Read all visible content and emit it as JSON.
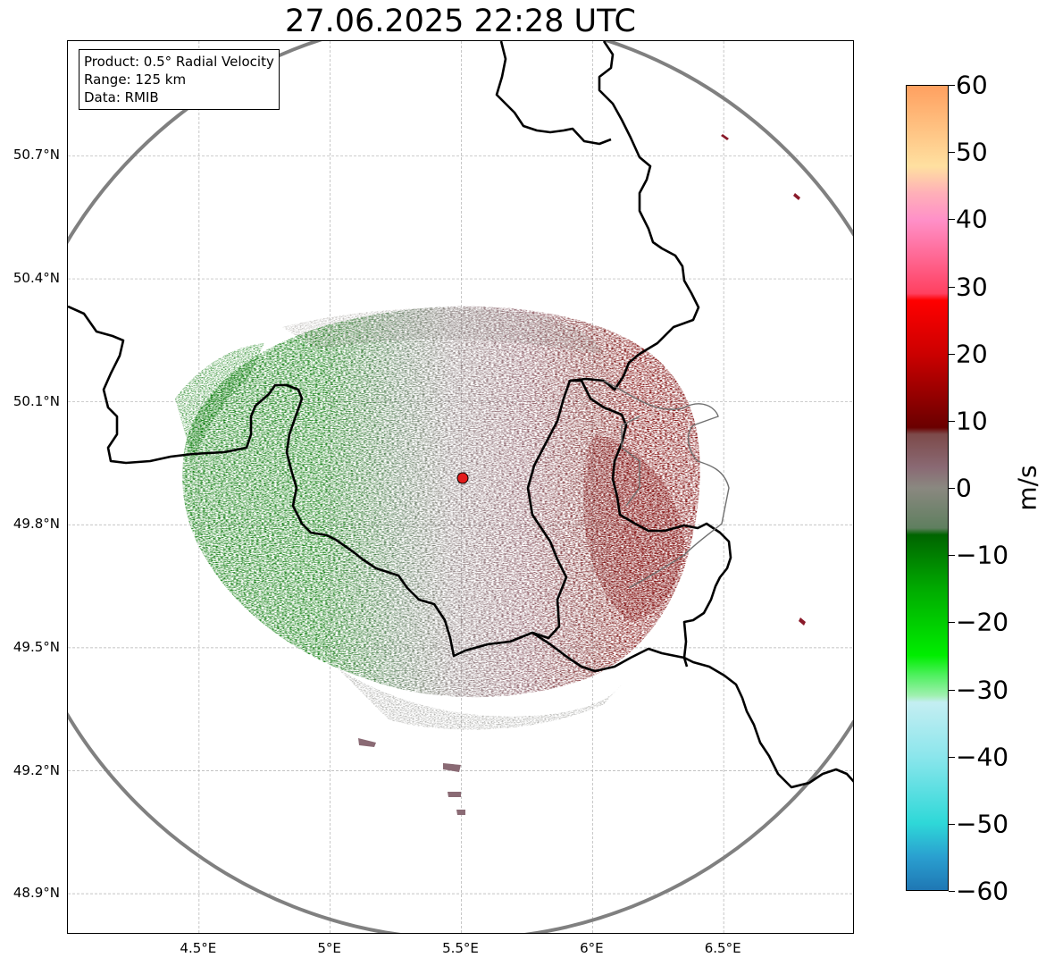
{
  "title": "27.06.2025 22:28 UTC",
  "info_box": {
    "product": "Product: 0.5° Radial Velocity",
    "range": "Range: 125 km",
    "source": "Data: RMIB"
  },
  "map": {
    "lon_range": [
      4.0,
      7.0
    ],
    "lat_range": [
      48.8,
      50.98
    ],
    "radar_site": {
      "lon": 5.505,
      "lat": 49.914
    },
    "range_km": 125,
    "lat_ticks": [
      "50.7°N",
      "50.4°N",
      "50.1°N",
      "49.8°N",
      "49.5°N",
      "49.2°N",
      "48.9°N"
    ],
    "lon_ticks": [
      "4.5°E",
      "5°E",
      "5.5°E",
      "6°E",
      "6.5°E"
    ],
    "grid": true,
    "colors": {
      "outbound_far": "#7a0000",
      "outbound": "#8a5a64",
      "near_zero": "#8c8080",
      "inbound": "#5e7e5e",
      "inbound_far": "#0b7a0b",
      "range_ring": "#808080",
      "border": "#000000",
      "radar_marker": "#e21b1b"
    }
  },
  "colorbar": {
    "unit": "m/s",
    "min": -60,
    "max": 60,
    "ticks": [
      "60",
      "50",
      "40",
      "30",
      "20",
      "10",
      "0",
      "−10",
      "−20",
      "−30",
      "−40",
      "−50",
      "−60"
    ],
    "stops": [
      {
        "v": -60,
        "c": "#1f77b4"
      },
      {
        "v": -55,
        "c": "#2aa0d0"
      },
      {
        "v": -50,
        "c": "#2ed8d8"
      },
      {
        "v": -40,
        "c": "#8ce6ec"
      },
      {
        "v": -32,
        "c": "#c4eef2"
      },
      {
        "v": -31,
        "c": "#a0f0b0"
      },
      {
        "v": -28,
        "c": "#50f060"
      },
      {
        "v": -25,
        "c": "#00ee00"
      },
      {
        "v": -15,
        "c": "#00aa00"
      },
      {
        "v": -7,
        "c": "#006400"
      },
      {
        "v": -6,
        "c": "#5f7f5f"
      },
      {
        "v": 0,
        "c": "#8a8880"
      },
      {
        "v": 3,
        "c": "#8a6a74"
      },
      {
        "v": 8,
        "c": "#7d4a4a"
      },
      {
        "v": 9,
        "c": "#6a0000"
      },
      {
        "v": 20,
        "c": "#cc0000"
      },
      {
        "v": 28,
        "c": "#ff0000"
      },
      {
        "v": 29,
        "c": "#ff4060"
      },
      {
        "v": 40,
        "c": "#ff90c8"
      },
      {
        "v": 44,
        "c": "#ffb0b8"
      },
      {
        "v": 48,
        "c": "#ffe0a0"
      },
      {
        "v": 60,
        "c": "#ffa060"
      }
    ]
  }
}
